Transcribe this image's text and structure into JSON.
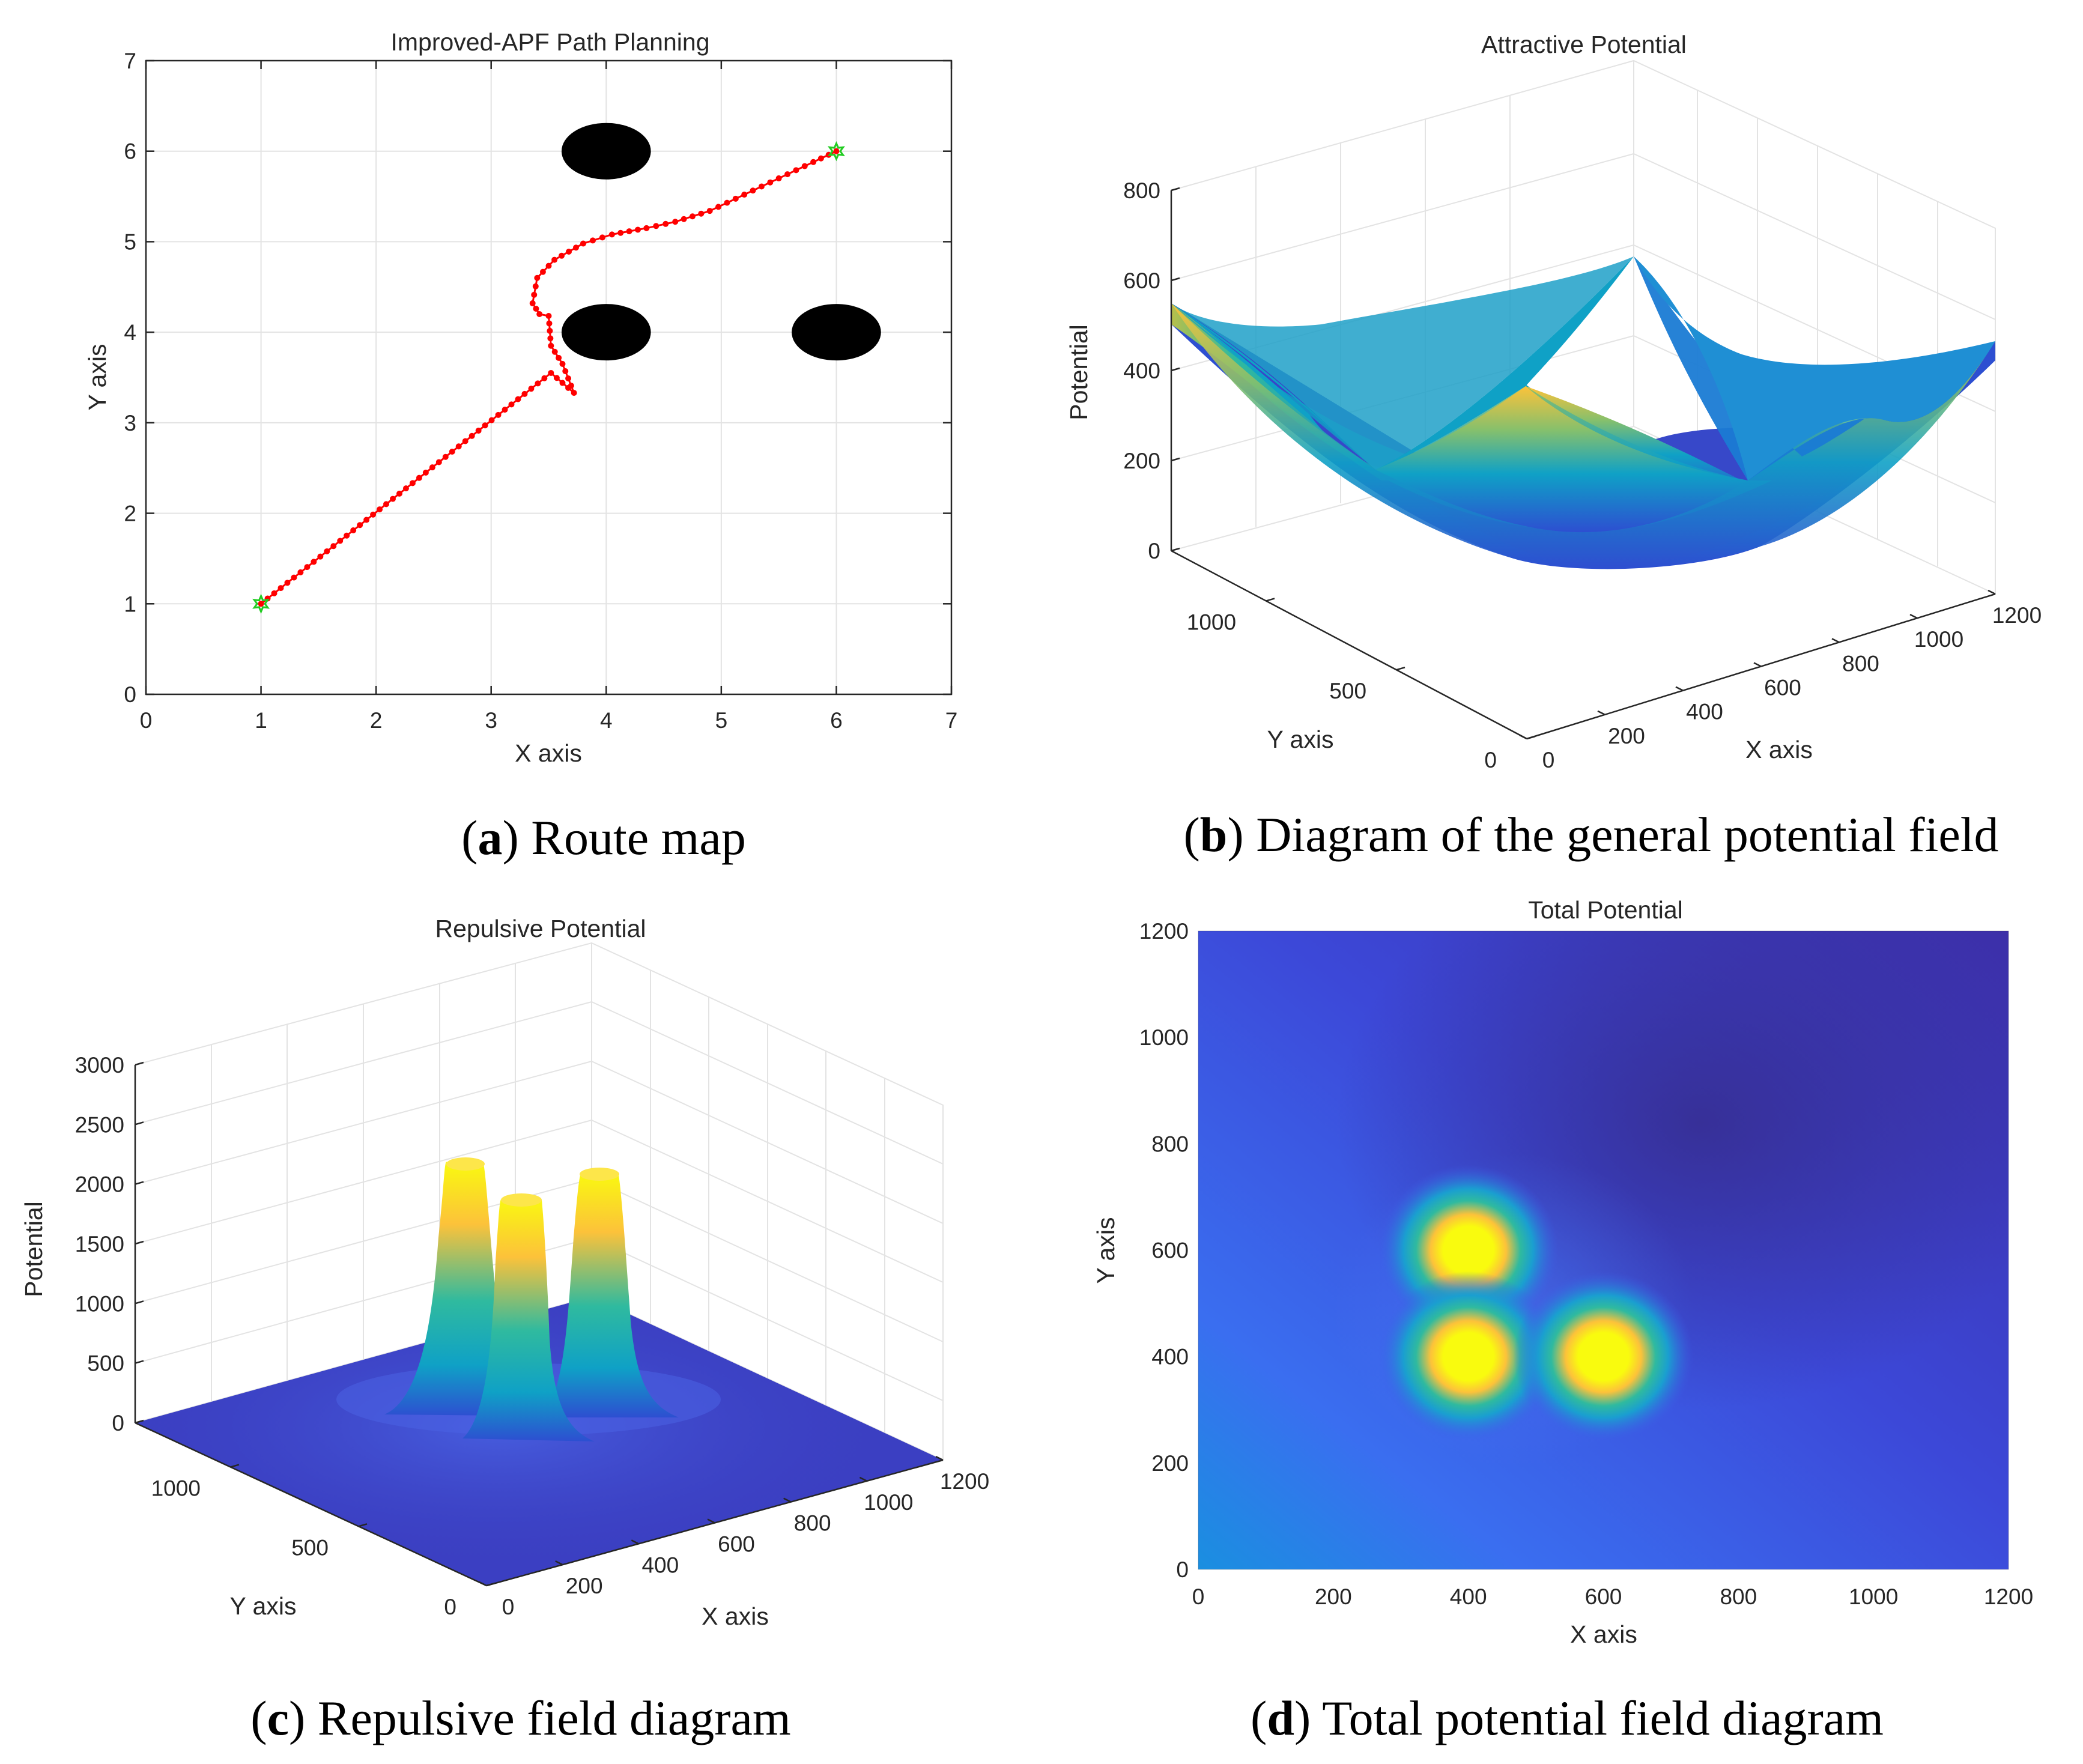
{
  "colors": {
    "path": "#ff0000",
    "marker": "#22cc22",
    "obstacle": "#000000",
    "parula": [
      "#352a87",
      "#2d4fd1",
      "#1a7bd4",
      "#0fa1c6",
      "#2fba9f",
      "#86c06c",
      "#d2ba3e",
      "#fcc23a",
      "#f9fb0e"
    ]
  },
  "chart_data": [
    {
      "id": "a",
      "type": "line",
      "title": "Improved-APF Path Planning",
      "xlabel": "X axis",
      "ylabel": "Y axis",
      "xlim": [
        0,
        7
      ],
      "ylim": [
        0,
        7
      ],
      "xticks": [
        "0",
        "1",
        "2",
        "3",
        "4",
        "5",
        "6",
        "7"
      ],
      "yticks": [
        "0",
        "1",
        "2",
        "3",
        "4",
        "5",
        "6",
        "7"
      ],
      "grid": true,
      "start": [
        1,
        1
      ],
      "goal": [
        6,
        6
      ],
      "obstacles": [
        {
          "x": 4,
          "y": 6,
          "r": 0.4
        },
        {
          "x": 4,
          "y": 4,
          "r": 0.4
        },
        {
          "x": 6,
          "y": 4,
          "r": 0.4
        }
      ],
      "path": [
        [
          1,
          1
        ],
        [
          3.52,
          3.55
        ],
        [
          3.72,
          3.33
        ],
        [
          3.62,
          3.65
        ],
        [
          3.52,
          3.85
        ],
        [
          3.5,
          4.18
        ],
        [
          3.42,
          4.2
        ],
        [
          3.36,
          4.32
        ],
        [
          3.4,
          4.6
        ],
        [
          3.55,
          4.8
        ],
        [
          3.8,
          4.98
        ],
        [
          4.05,
          5.08
        ],
        [
          4.35,
          5.15
        ],
        [
          4.6,
          5.22
        ],
        [
          4.9,
          5.34
        ],
        [
          5.2,
          5.52
        ],
        [
          5.5,
          5.7
        ],
        [
          5.8,
          5.88
        ],
        [
          6,
          6
        ]
      ],
      "caption": {
        "label": "a",
        "text": " Route map"
      }
    },
    {
      "id": "b",
      "type": "surface",
      "title": "Attractive Potential",
      "xlabel": "X axis",
      "ylabel": "Y axis",
      "zlabel": "Potential",
      "zlim": [
        0,
        800
      ],
      "zticks": [
        "0",
        "200",
        "400",
        "600",
        "800"
      ],
      "xticks": [
        "0",
        "200",
        "400",
        "600",
        "800",
        "1000",
        "1200"
      ],
      "yticks": [
        "0",
        "500",
        "1000"
      ],
      "goal": [
        600,
        600
      ],
      "caption": {
        "label": "b",
        "text": " Diagram of the general potential field"
      }
    },
    {
      "id": "c",
      "type": "surface",
      "title": "Repulsive Potential",
      "xlabel": "X axis",
      "ylabel": "Y axis",
      "zlabel": "Potential",
      "zlim": [
        0,
        3000
      ],
      "zticks": [
        "0",
        "500",
        "1000",
        "1500",
        "2000",
        "2500",
        "3000"
      ],
      "xticks": [
        "0",
        "200",
        "400",
        "600",
        "800",
        "1000",
        "1200"
      ],
      "yticks": [
        "0",
        "500",
        "1000"
      ],
      "peaks": [
        {
          "x": 400,
          "y": 600,
          "value": 2200
        },
        {
          "x": 400,
          "y": 400,
          "value": 2000
        },
        {
          "x": 600,
          "y": 400,
          "value": 2150
        }
      ],
      "caption": {
        "label": "c",
        "text": " Repulsive field diagram"
      }
    },
    {
      "id": "d",
      "type": "heatmap",
      "title": "Total Potential",
      "xlabel": "X axis",
      "ylabel": "Y axis",
      "xlim": [
        0,
        1200
      ],
      "ylim": [
        0,
        1200
      ],
      "xticks": [
        "0",
        "200",
        "400",
        "600",
        "800",
        "1000",
        "1200"
      ],
      "yticks": [
        "0",
        "200",
        "400",
        "600",
        "800",
        "1000",
        "1200"
      ],
      "hotspots": [
        {
          "x": 400,
          "y": 600
        },
        {
          "x": 400,
          "y": 400
        },
        {
          "x": 600,
          "y": 400
        }
      ],
      "caption": {
        "label": "d",
        "text": " Total potential field diagram"
      }
    }
  ]
}
